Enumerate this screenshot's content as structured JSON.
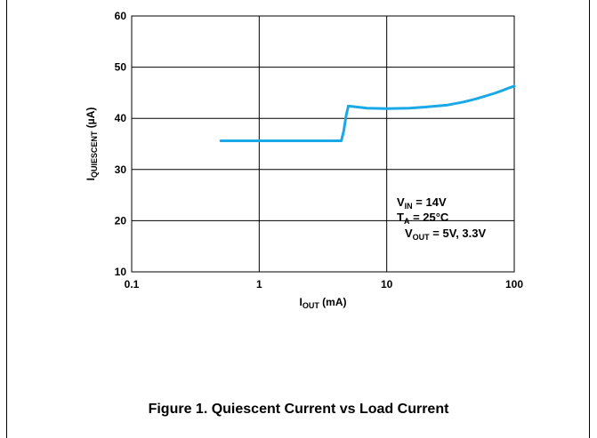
{
  "chart_data": {
    "type": "line",
    "xscale": "log",
    "xlim": [
      0.1,
      100
    ],
    "ylim": [
      10,
      60
    ],
    "grid": true,
    "x_ticks": [
      0.1,
      1,
      10,
      100
    ],
    "x_tick_labels": [
      "0.1",
      "1",
      "10",
      "100"
    ],
    "y_ticks": [
      10,
      20,
      30,
      40,
      50,
      60
    ],
    "y_tick_labels": [
      "10",
      "20",
      "30",
      "40",
      "50",
      "60"
    ],
    "xlabel": {
      "main": "I",
      "sub": "OUT",
      "rest": " (mA)"
    },
    "ylabel": {
      "main": "I",
      "sub": "QUIESCENT",
      "rest": " (µA)"
    },
    "series": [
      {
        "color": "#1aa9e6",
        "x": [
          0.5,
          1,
          2,
          3,
          4.4,
          4.6,
          4.8,
          5.0,
          5.5,
          7,
          10,
          15,
          20,
          30,
          40,
          50,
          60,
          70,
          80,
          90,
          100
        ],
        "y": [
          35.6,
          35.6,
          35.6,
          35.6,
          35.6,
          37.5,
          40.5,
          42.4,
          42.3,
          42.0,
          41.9,
          42.0,
          42.2,
          42.6,
          43.2,
          43.8,
          44.4,
          44.9,
          45.4,
          45.9,
          46.3
        ]
      }
    ],
    "annotation": [
      {
        "main": "V",
        "sub": "IN",
        "rest": " = 14V"
      },
      {
        "main": "T",
        "sub": "A",
        "rest": " = 25°C"
      },
      {
        "main": "V",
        "sub": "OUT",
        "rest": " = 5V, 3.3V"
      }
    ]
  },
  "caption": "Figure 1. Quiescent Current vs Load Current"
}
